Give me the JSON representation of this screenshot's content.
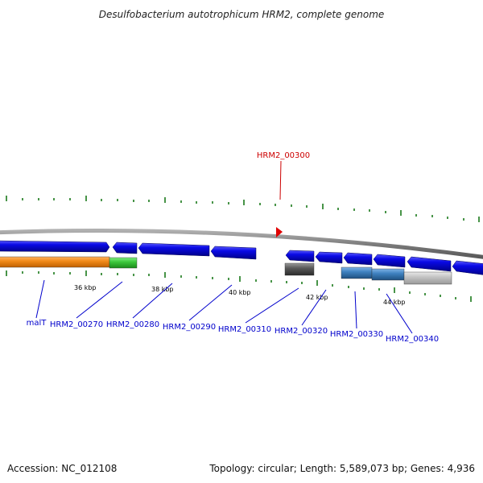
{
  "title": "Desulfobacterium autotrophicum HRM2, complete genome",
  "highlighted_gene": {
    "label": "HRM2_00300",
    "color": "#cc0000"
  },
  "genes": [
    {
      "label": "malT",
      "strand": "forward",
      "color": "#0000ee"
    },
    {
      "label": "HRM2_00270",
      "strand": "reverse",
      "color": "#0000ee"
    },
    {
      "label": "HRM2_00280",
      "strand": "reverse",
      "color": "#0000ee"
    },
    {
      "label": "HRM2_00290",
      "strand": "reverse",
      "color": "#0000ee"
    },
    {
      "label": "HRM2_00300",
      "strand": "forward",
      "color": "#cc0000"
    },
    {
      "label": "HRM2_00310",
      "strand": "reverse",
      "color": "#0000ee"
    },
    {
      "label": "HRM2_00320",
      "strand": "reverse",
      "color": "#0000ee"
    },
    {
      "label": "HRM2_00330",
      "strand": "reverse",
      "color": "#0000ee"
    },
    {
      "label": "HRM2_00340",
      "strand": "reverse",
      "color": "#0000ee"
    }
  ],
  "scale_labels": [
    "36 kbp",
    "38 kbp",
    "40 kbp",
    "42 kbp",
    "44 kbp"
  ],
  "colors": {
    "backbone": "#7a7a7a",
    "cds": "#0a0adc",
    "feature_orange": "#f28c1a",
    "feature_green": "#3ec93e",
    "feature_dark_gray": "#5a5a5a",
    "feature_steel_blue": "#3f82c0",
    "feature_light_gray": "#c4c4c4",
    "ticks": "#1a7a1a"
  },
  "footer": {
    "accession": "Accession: NC_012108",
    "stats": "Topology: circular; Length: 5,589,073 bp; Genes: 4,936"
  }
}
